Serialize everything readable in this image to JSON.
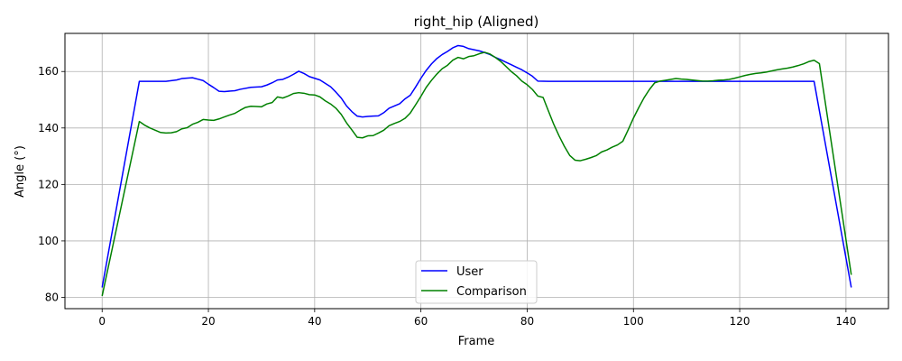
{
  "chart_data": {
    "type": "line",
    "title": "right_hip (Aligned)",
    "xlabel": "Frame",
    "ylabel": "Angle (°)",
    "xlim": [
      -7,
      148
    ],
    "ylim": [
      76,
      173.5
    ],
    "xticks": [
      0,
      20,
      40,
      60,
      80,
      100,
      120,
      140
    ],
    "yticks": [
      80,
      100,
      120,
      140,
      160
    ],
    "grid": true,
    "legend_position": "bottom-center",
    "series": [
      {
        "name": "User",
        "color": "#0000ff",
        "points": [
          [
            0,
            83.5
          ],
          [
            7,
            156.5
          ],
          [
            8,
            156.5
          ],
          [
            10,
            156.5
          ],
          [
            12,
            156.5
          ],
          [
            14,
            157
          ],
          [
            15,
            157.5
          ],
          [
            17,
            157.8
          ],
          [
            18,
            157.3
          ],
          [
            19,
            156.8
          ],
          [
            20,
            155.5
          ],
          [
            21,
            154.3
          ],
          [
            22,
            153
          ],
          [
            23,
            152.9
          ],
          [
            25,
            153.2
          ],
          [
            26,
            153.7
          ],
          [
            28,
            154.4
          ],
          [
            30,
            154.6
          ],
          [
            31,
            155.2
          ],
          [
            32,
            156
          ],
          [
            33,
            157
          ],
          [
            34,
            157.2
          ],
          [
            35,
            158
          ],
          [
            36,
            159
          ],
          [
            37,
            160.1
          ],
          [
            38,
            159.3
          ],
          [
            39,
            158.2
          ],
          [
            41,
            157
          ],
          [
            42,
            155.8
          ],
          [
            43,
            154.6
          ],
          [
            44,
            152.7
          ],
          [
            45,
            150.6
          ],
          [
            46,
            147.8
          ],
          [
            47,
            145.8
          ],
          [
            48,
            144.2
          ],
          [
            49,
            143.9
          ],
          [
            50,
            144.1
          ],
          [
            51,
            144.2
          ],
          [
            52,
            144.3
          ],
          [
            53,
            145.4
          ],
          [
            54,
            147
          ],
          [
            55,
            147.8
          ],
          [
            56,
            148.6
          ],
          [
            57,
            150.3
          ],
          [
            58,
            151.6
          ],
          [
            59,
            154.5
          ],
          [
            60,
            157.6
          ],
          [
            61,
            160.4
          ],
          [
            62,
            162.7
          ],
          [
            63,
            164.6
          ],
          [
            64,
            166
          ],
          [
            65,
            167.1
          ],
          [
            66,
            168.4
          ],
          [
            67,
            169.2
          ],
          [
            68,
            168.9
          ],
          [
            69,
            168.1
          ],
          [
            70,
            167.7
          ],
          [
            71,
            167.3
          ],
          [
            72,
            166.7
          ],
          [
            73,
            166
          ],
          [
            74,
            165
          ],
          [
            75,
            164.2
          ],
          [
            76,
            163.3
          ],
          [
            77,
            162.4
          ],
          [
            78,
            161.5
          ],
          [
            79,
            160.6
          ],
          [
            80,
            159.5
          ],
          [
            81,
            158.3
          ],
          [
            82,
            156.6
          ],
          [
            84,
            156.5
          ],
          [
            90,
            156.5
          ],
          [
            100,
            156.5
          ],
          [
            110,
            156.5
          ],
          [
            120,
            156.5
          ],
          [
            130,
            156.5
          ],
          [
            134,
            156.5
          ],
          [
            141,
            83.5
          ]
        ]
      },
      {
        "name": "Comparison",
        "color": "#008000",
        "points": [
          [
            0,
            80.5
          ],
          [
            7,
            142.3
          ],
          [
            8,
            141
          ],
          [
            9,
            140
          ],
          [
            10,
            139.2
          ],
          [
            11,
            138.4
          ],
          [
            12,
            138.2
          ],
          [
            13,
            138.3
          ],
          [
            14,
            138.7
          ],
          [
            15,
            139.7
          ],
          [
            16,
            140.1
          ],
          [
            17,
            141.3
          ],
          [
            18,
            142
          ],
          [
            19,
            143
          ],
          [
            20,
            142.8
          ],
          [
            21,
            142.7
          ],
          [
            22,
            143.2
          ],
          [
            23,
            143.9
          ],
          [
            24,
            144.6
          ],
          [
            25,
            145.2
          ],
          [
            26,
            146.3
          ],
          [
            27,
            147.3
          ],
          [
            28,
            147.7
          ],
          [
            29,
            147.6
          ],
          [
            30,
            147.5
          ],
          [
            31,
            148.5
          ],
          [
            32,
            149
          ],
          [
            33,
            151
          ],
          [
            34,
            150.6
          ],
          [
            35,
            151.3
          ],
          [
            36,
            152.2
          ],
          [
            37,
            152.5
          ],
          [
            38,
            152.3
          ],
          [
            39,
            151.8
          ],
          [
            40,
            151.7
          ],
          [
            41,
            151
          ],
          [
            42,
            149.6
          ],
          [
            43,
            148.5
          ],
          [
            44,
            147
          ],
          [
            45,
            144.8
          ],
          [
            46,
            141.8
          ],
          [
            47,
            139.3
          ],
          [
            48,
            136.7
          ],
          [
            49,
            136.5
          ],
          [
            50,
            137.2
          ],
          [
            51,
            137.3
          ],
          [
            52,
            138.2
          ],
          [
            53,
            139.2
          ],
          [
            54,
            140.8
          ],
          [
            55,
            141.6
          ],
          [
            56,
            142.3
          ],
          [
            57,
            143.4
          ],
          [
            58,
            145.3
          ],
          [
            59,
            148.2
          ],
          [
            60,
            151.2
          ],
          [
            61,
            154.4
          ],
          [
            62,
            156.9
          ],
          [
            63,
            159.1
          ],
          [
            64,
            161
          ],
          [
            65,
            162.2
          ],
          [
            66,
            164
          ],
          [
            67,
            165
          ],
          [
            68,
            164.5
          ],
          [
            69,
            165.3
          ],
          [
            70,
            165.6
          ],
          [
            71,
            166.3
          ],
          [
            72,
            166.8
          ],
          [
            73,
            166.2
          ],
          [
            74,
            165
          ],
          [
            75,
            163.6
          ],
          [
            76,
            161.8
          ],
          [
            77,
            160
          ],
          [
            78,
            158.5
          ],
          [
            79,
            156.6
          ],
          [
            80,
            155.3
          ],
          [
            81,
            153.6
          ],
          [
            82,
            151.3
          ],
          [
            83,
            150.8
          ],
          [
            84,
            146
          ],
          [
            85,
            141.3
          ],
          [
            86,
            137.2
          ],
          [
            87,
            133.5
          ],
          [
            88,
            130.3
          ],
          [
            89,
            128.6
          ],
          [
            90,
            128.4
          ],
          [
            91,
            128.9
          ],
          [
            92,
            129.5
          ],
          [
            93,
            130.2
          ],
          [
            94,
            131.5
          ],
          [
            95,
            132.2
          ],
          [
            96,
            133.2
          ],
          [
            97,
            134
          ],
          [
            98,
            135.3
          ],
          [
            99,
            139.3
          ],
          [
            100,
            143.5
          ],
          [
            101,
            147.2
          ],
          [
            102,
            150.7
          ],
          [
            103,
            153.6
          ],
          [
            104,
            156
          ],
          [
            105,
            156.6
          ],
          [
            106,
            156.9
          ],
          [
            107,
            157.2
          ],
          [
            108,
            157.5
          ],
          [
            109,
            157.3
          ],
          [
            110,
            157.2
          ],
          [
            111,
            157
          ],
          [
            112,
            156.8
          ],
          [
            113,
            156.6
          ],
          [
            114,
            156.6
          ],
          [
            115,
            156.7
          ],
          [
            116,
            156.9
          ],
          [
            117,
            157
          ],
          [
            118,
            157.2
          ],
          [
            119,
            157.6
          ],
          [
            120,
            158.1
          ],
          [
            121,
            158.6
          ],
          [
            122,
            159
          ],
          [
            123,
            159.3
          ],
          [
            124,
            159.5
          ],
          [
            125,
            159.8
          ],
          [
            126,
            160.2
          ],
          [
            127,
            160.6
          ],
          [
            128,
            160.9
          ],
          [
            129,
            161.2
          ],
          [
            130,
            161.6
          ],
          [
            131,
            162.1
          ],
          [
            132,
            162.7
          ],
          [
            133,
            163.5
          ],
          [
            134,
            164
          ],
          [
            135,
            162.8
          ],
          [
            141,
            88
          ]
        ]
      }
    ]
  }
}
